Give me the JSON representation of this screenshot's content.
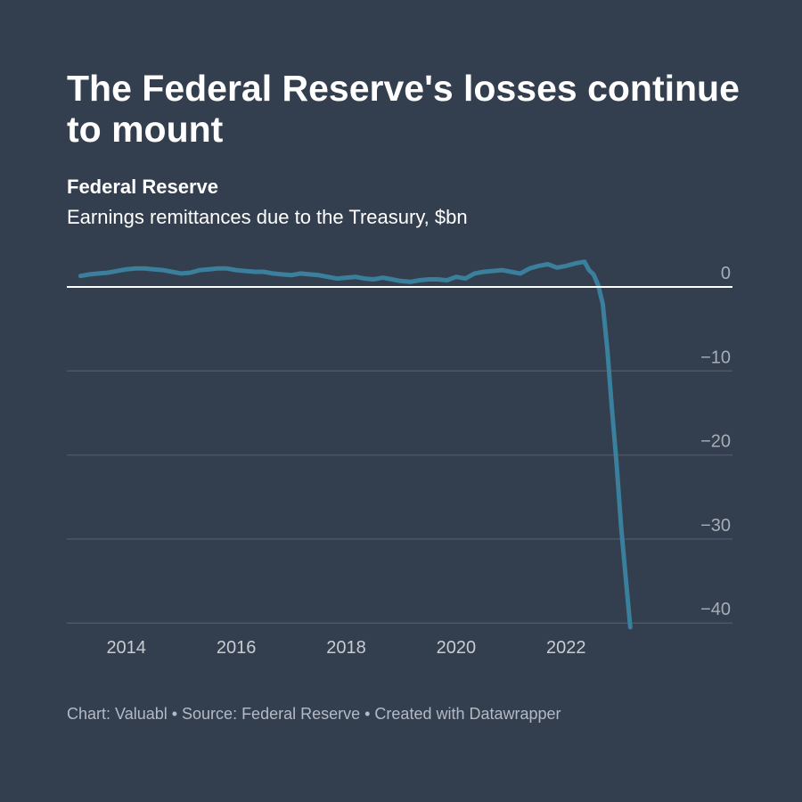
{
  "header": {
    "title": "The Federal Reserve's losses continue to mount",
    "label": "Federal Reserve",
    "subtitle": "Earnings remittances due to the Treasury, $bn"
  },
  "footer": {
    "credit": "Chart: Valuabl • Source: Federal Reserve • Created with Datawrapper"
  },
  "colors": {
    "background": "#333e4f",
    "line": "#3a7f9c",
    "zero_line": "#ffffff",
    "grid": "#4c5668",
    "tick_text": "#a7adb7",
    "x_tick_text": "#c8ccd3"
  },
  "chart_data": {
    "type": "line",
    "title": "The Federal Reserve's losses continue to mount",
    "subtitle": "Earnings remittances due to the Treasury, $bn",
    "xlabel": "",
    "ylabel": "",
    "x_ticks": [
      "2014",
      "2016",
      "2018",
      "2020",
      "2022"
    ],
    "y_ticks": [
      0,
      -10,
      -20,
      -30,
      -40
    ],
    "y_tick_labels": [
      "0",
      "−10",
      "−20",
      "−30",
      "−40"
    ],
    "xlim": [
      "2013-01",
      "2024-12"
    ],
    "ylim": [
      -41,
      2
    ],
    "grid": true,
    "legend": "none",
    "series": [
      {
        "name": "Federal Reserve",
        "x": [
          "2013-03",
          "2013-05",
          "2013-07",
          "2013-09",
          "2013-11",
          "2014-01",
          "2014-03",
          "2014-05",
          "2014-07",
          "2014-09",
          "2014-11",
          "2015-01",
          "2015-03",
          "2015-05",
          "2015-07",
          "2015-09",
          "2015-11",
          "2016-01",
          "2016-03",
          "2016-05",
          "2016-07",
          "2016-09",
          "2016-11",
          "2017-01",
          "2017-03",
          "2017-05",
          "2017-07",
          "2017-09",
          "2017-11",
          "2018-01",
          "2018-03",
          "2018-05",
          "2018-07",
          "2018-09",
          "2018-11",
          "2019-01",
          "2019-03",
          "2019-05",
          "2019-07",
          "2019-09",
          "2019-11",
          "2020-01",
          "2020-03",
          "2020-05",
          "2020-07",
          "2020-09",
          "2020-11",
          "2021-01",
          "2021-03",
          "2021-05",
          "2021-07",
          "2021-09",
          "2021-11",
          "2022-01",
          "2022-03",
          "2022-05",
          "2022-06",
          "2022-07",
          "2022-08",
          "2022-09",
          "2022-10",
          "2022-11",
          "2022-12",
          "2023-01",
          "2023-02",
          "2023-03"
        ],
        "values": [
          1.3,
          1.5,
          1.6,
          1.7,
          1.9,
          2.1,
          2.2,
          2.2,
          2.1,
          2.0,
          1.8,
          1.6,
          1.7,
          2.0,
          2.1,
          2.2,
          2.2,
          2.0,
          1.9,
          1.8,
          1.8,
          1.6,
          1.5,
          1.4,
          1.6,
          1.5,
          1.4,
          1.2,
          1.0,
          1.1,
          1.2,
          1.0,
          0.9,
          1.1,
          0.9,
          0.7,
          0.6,
          0.8,
          0.9,
          0.9,
          0.8,
          1.2,
          1.0,
          1.6,
          1.8,
          1.9,
          2.0,
          1.8,
          1.6,
          2.2,
          2.5,
          2.7,
          2.3,
          2.5,
          2.8,
          3.0,
          2.0,
          1.5,
          0.2,
          -2.0,
          -7.5,
          -14.5,
          -21.0,
          -28.5,
          -34.5,
          -40.5
        ]
      }
    ]
  }
}
